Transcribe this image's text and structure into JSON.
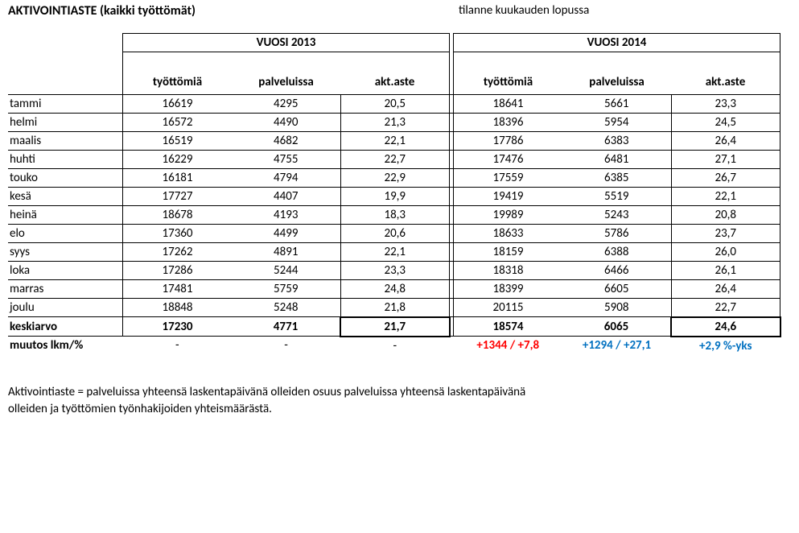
{
  "title": "AKTIVOINTIASTE (kaikki työttömät)",
  "subtitle": "tilanne kuukauden lopussa",
  "year_headers": {
    "y2013": "VUOSI 2013",
    "y2014": "VUOSI 2014"
  },
  "col_headers": {
    "unemp": "työttömiä",
    "service": "palveluissa",
    "rate": "akt.aste"
  },
  "months": [
    "tammi",
    "helmi",
    "maalis",
    "huhti",
    "touko",
    "kesä",
    "heinä",
    "elo",
    "syys",
    "loka",
    "marras",
    "joulu"
  ],
  "avg_label": "keskiarvo",
  "change_label": "muutos lkm/%",
  "data_2013": {
    "unemp": [
      "16619",
      "16572",
      "16519",
      "16229",
      "16181",
      "17727",
      "18678",
      "17360",
      "17262",
      "17286",
      "17481",
      "18848"
    ],
    "service": [
      "4295",
      "4490",
      "4682",
      "4755",
      "4794",
      "4407",
      "4193",
      "4499",
      "4891",
      "5244",
      "5759",
      "5248"
    ],
    "rate": [
      "20,5",
      "21,3",
      "22,1",
      "22,7",
      "22,9",
      "19,9",
      "18,3",
      "20,6",
      "22,1",
      "23,3",
      "24,8",
      "21,8"
    ]
  },
  "data_2014": {
    "unemp": [
      "18641",
      "18396",
      "17786",
      "17476",
      "17559",
      "19419",
      "19989",
      "18633",
      "18159",
      "18318",
      "18399",
      "20115"
    ],
    "service": [
      "5661",
      "5954",
      "6383",
      "6481",
      "6385",
      "5519",
      "5243",
      "5786",
      "6388",
      "6466",
      "6605",
      "5908"
    ],
    "rate": [
      "23,3",
      "24,5",
      "26,4",
      "27,1",
      "26,7",
      "22,1",
      "20,8",
      "23,7",
      "26,0",
      "26,1",
      "26,4",
      "22,7"
    ]
  },
  "avg_2013": {
    "unemp": "17230",
    "service": "4771",
    "rate": "21,7"
  },
  "avg_2014": {
    "unemp": "18574",
    "service": "6065",
    "rate": "24,6"
  },
  "change_2013": {
    "unemp": "-",
    "service": "-",
    "rate": "-"
  },
  "change_2014": {
    "unemp": "+1344 / +7,8",
    "service": "+1294 / +27,1",
    "rate": "+2,9 %-yks"
  },
  "footnote_line1": "Aktivointiaste = palveluissa yhteensä laskentapäivänä olleiden osuus palveluissa yhteensä laskentapäivänä",
  "footnote_line2": "olleiden ja työttömien työnhakijoiden yhteismäärästä.",
  "colors": {
    "red": "#ff0000",
    "blue": "#0070c0",
    "black": "#000000",
    "bg": "#ffffff"
  },
  "fonts": {
    "family": "Calibri",
    "base_size_pt": 11,
    "title_size_pt": 12
  }
}
